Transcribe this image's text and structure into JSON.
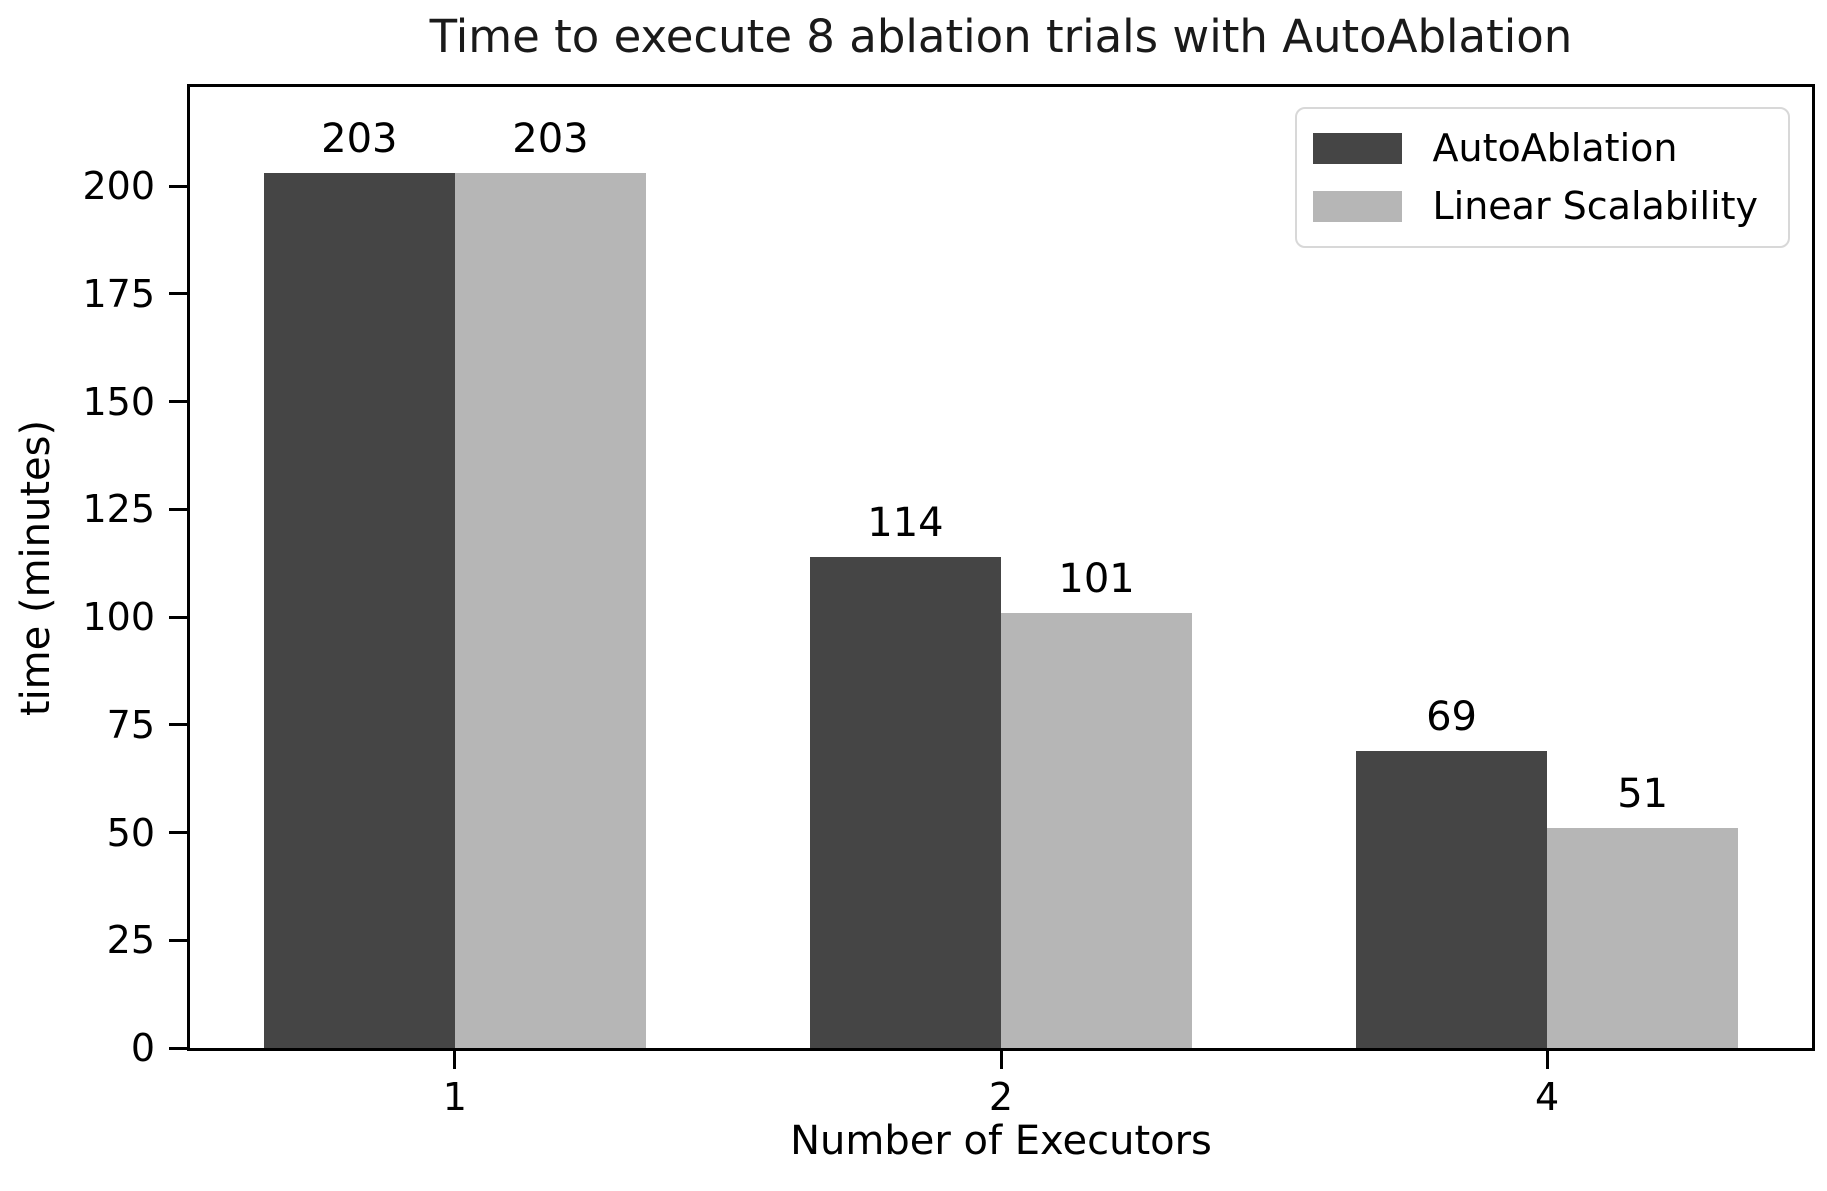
{
  "chart_data": {
    "type": "bar",
    "title": "Time to execute 8 ablation trials with AutoAblation",
    "xlabel": "Number of Executors",
    "ylabel": "time (minutes)",
    "categories": [
      "1",
      "2",
      "4"
    ],
    "series": [
      {
        "name": "AutoAblation",
        "color": "#454545",
        "values": [
          203,
          114,
          69
        ]
      },
      {
        "name": "Linear Scalability",
        "color": "#b6b6b6",
        "values": [
          203,
          101,
          51
        ]
      }
    ],
    "bar_value_labels": [
      [
        "203",
        "114",
        "69"
      ],
      [
        "203",
        "101",
        "51"
      ]
    ],
    "yticks": [
      "0",
      "25",
      "50",
      "75",
      "100",
      "125",
      "150",
      "175",
      "200"
    ],
    "ytick_values": [
      0,
      25,
      50,
      75,
      100,
      125,
      150,
      175,
      200
    ],
    "ylim": [
      0,
      223
    ],
    "xlim": [
      -0.485,
      2.485
    ],
    "bar_width": 0.35,
    "legend_position": "upper right",
    "grid": false,
    "colors": {
      "axis": "#000000",
      "text": "#000000",
      "legend_border": "#d8d8d8",
      "background": "#ffffff"
    }
  }
}
